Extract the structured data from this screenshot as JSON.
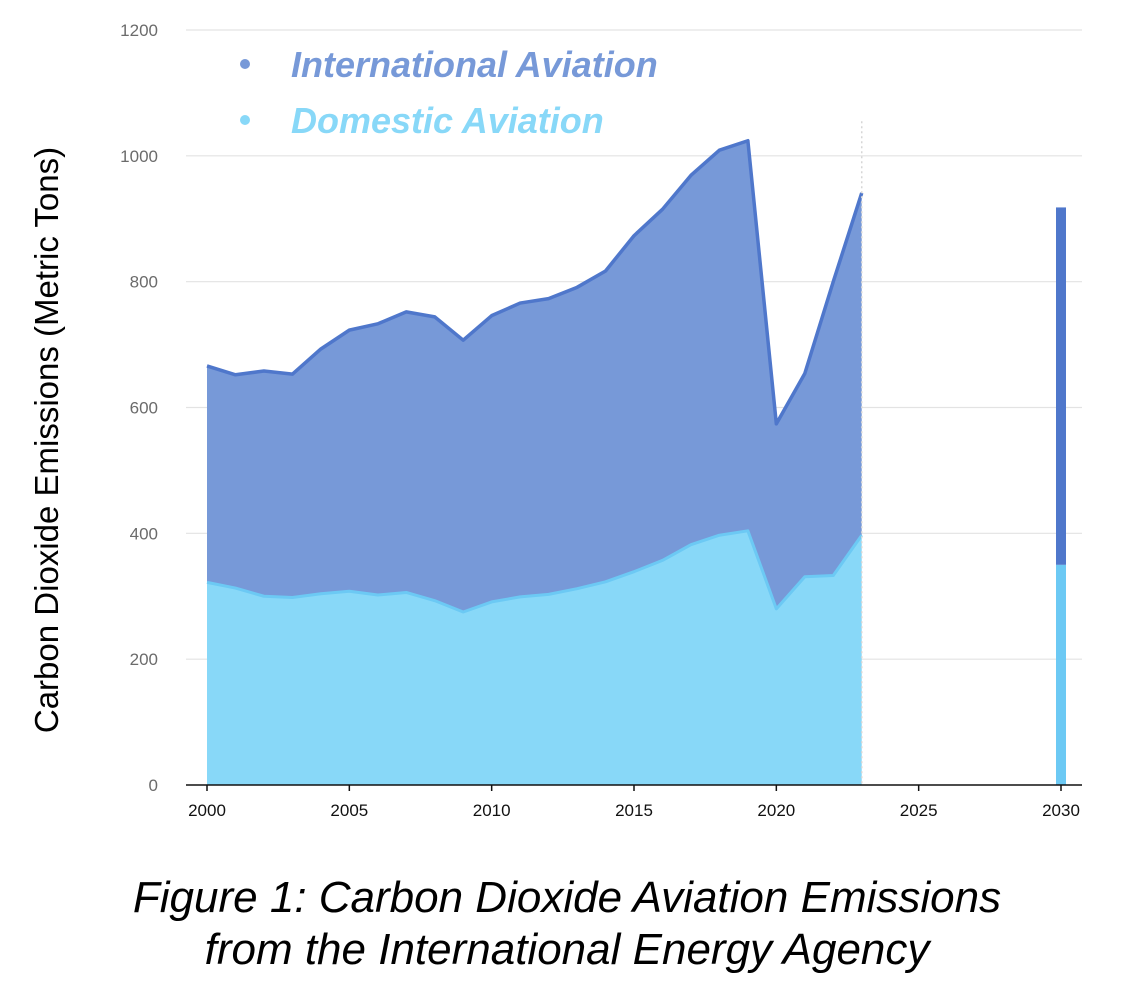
{
  "chart_data": {
    "type": "area",
    "stacked": true,
    "title": "",
    "xlabel": "",
    "ylabel": "Carbon Dioxide Emissions (Metric Tons)",
    "xlim": [
      2000,
      2030
    ],
    "ylim": [
      0,
      1200
    ],
    "x_ticks": [
      2000,
      2005,
      2010,
      2015,
      2020,
      2025,
      2030
    ],
    "y_ticks": [
      0,
      200,
      400,
      600,
      800,
      1000,
      1200
    ],
    "grid": true,
    "legend_position": "top-left",
    "x": [
      2000,
      2001,
      2002,
      2003,
      2004,
      2005,
      2006,
      2007,
      2008,
      2009,
      2010,
      2011,
      2012,
      2013,
      2014,
      2015,
      2016,
      2017,
      2018,
      2019,
      2020,
      2021,
      2022,
      2023
    ],
    "series": [
      {
        "name": "Domestic Aviation",
        "color": "#88d8f8",
        "line_color": "#6cc9f4",
        "values": [
          322,
          313,
          300,
          298,
          304,
          308,
          302,
          306,
          293,
          275,
          291,
          299,
          303,
          312,
          323,
          339,
          357,
          382,
          397,
          404,
          280,
          331,
          333,
          397
        ]
      },
      {
        "name": "International Aviation",
        "color": "#7799d8",
        "line_color": "#4f77cb",
        "values": [
          344,
          339,
          358,
          355,
          389,
          415,
          431,
          446,
          451,
          432,
          455,
          467,
          470,
          479,
          494,
          534,
          558,
          587,
          612,
          620,
          294,
          323,
          467,
          544
        ]
      }
    ],
    "projection_2030": {
      "x": 2030,
      "domestic": 350,
      "international": 568,
      "domestic_color": "#6cc9f4",
      "international_color": "#4f77cb"
    },
    "legend": [
      {
        "label": "International Aviation",
        "color": "#7799d8"
      },
      {
        "label": "Domestic Aviation",
        "color": "#88d8f8"
      }
    ]
  },
  "caption": {
    "line1": "Figure 1: Carbon Dioxide Aviation Emissions",
    "line2": "from the International Energy Agency"
  }
}
